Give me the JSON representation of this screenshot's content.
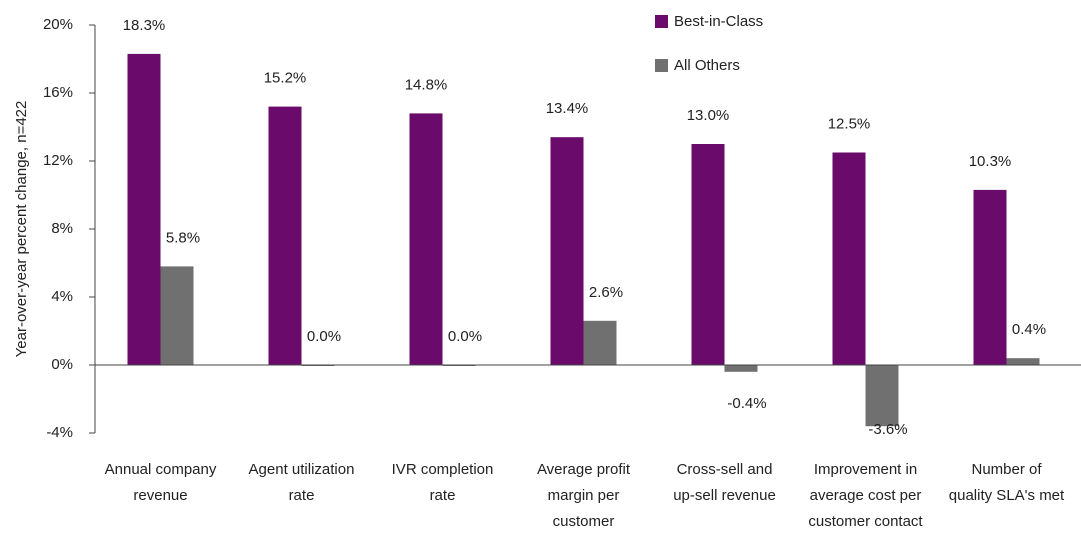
{
  "chart_data": {
    "type": "bar",
    "y_label": "Year-over-year percent change, n=422",
    "categories": [
      [
        "Annual company",
        "revenue"
      ],
      [
        "Agent utilization",
        "rate"
      ],
      [
        "IVR completion",
        "rate"
      ],
      [
        "Average profit",
        "margin per",
        "customer"
      ],
      [
        "Cross-sell and",
        "up-sell revenue"
      ],
      [
        "Improvement in",
        "average cost per",
        "customer contact"
      ],
      [
        "Number of",
        "quality SLA's met"
      ]
    ],
    "series": [
      {
        "name": "Best-in-Class",
        "color": "#6a0a6a",
        "values": [
          18.3,
          15.2,
          14.8,
          13.4,
          13.0,
          12.5,
          10.3
        ],
        "value_labels": [
          "18.3%",
          "15.2%",
          "14.8%",
          "13.4%",
          "13.0%",
          "12.5%",
          "10.3%"
        ]
      },
      {
        "name": "All Others",
        "color": "#707070",
        "values": [
          5.8,
          0.0,
          0.0,
          2.6,
          -0.4,
          -3.6,
          0.4
        ],
        "value_labels": [
          "5.8%",
          "0.0%",
          "0.0%",
          "2.6%",
          "-0.4%",
          "-3.6%",
          "0.4%"
        ]
      }
    ],
    "ylim": [
      -4,
      20
    ],
    "yticks": [
      {
        "value": -4,
        "label": "-4%"
      },
      {
        "value": 0,
        "label": "0%"
      },
      {
        "value": 4,
        "label": "4%"
      },
      {
        "value": 8,
        "label": "8%"
      },
      {
        "value": 12,
        "label": "12%"
      },
      {
        "value": 16,
        "label": "16%"
      },
      {
        "value": 20,
        "label": "20%"
      }
    ],
    "legend": "top-right"
  }
}
